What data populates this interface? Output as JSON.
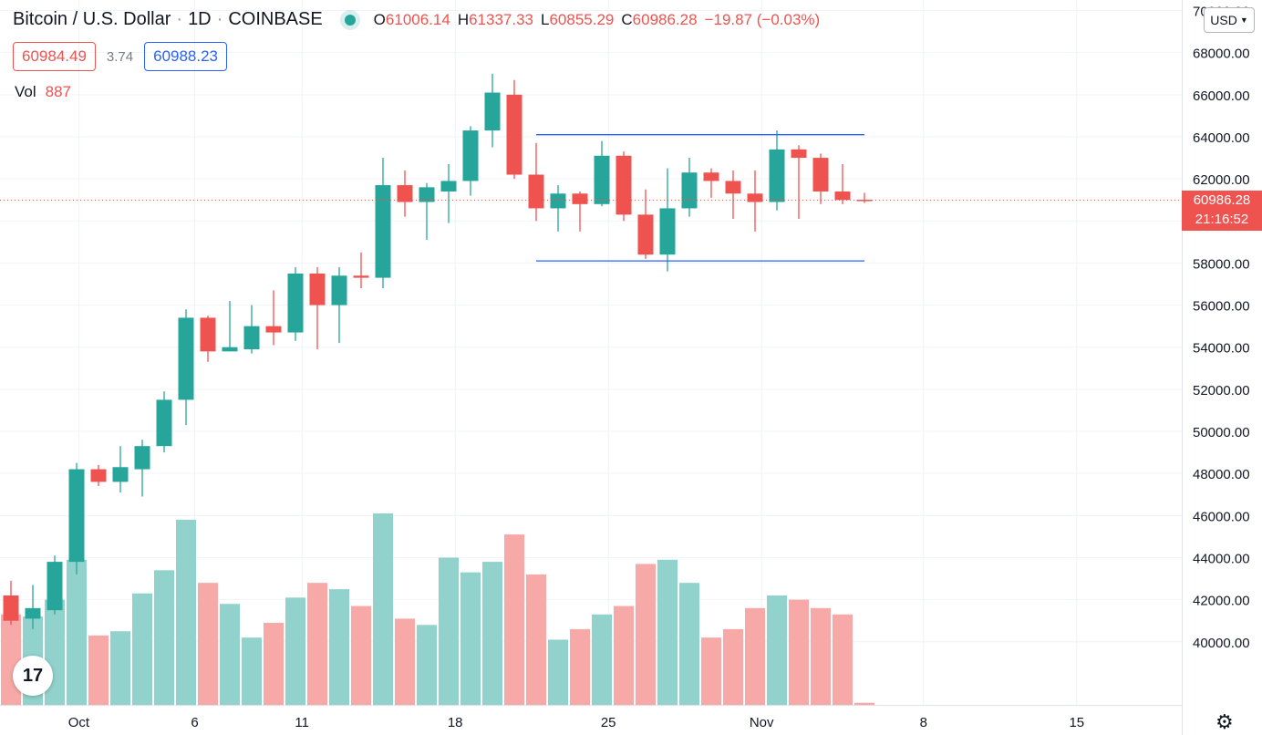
{
  "header": {
    "symbol": "Bitcoin / U.S. Dollar",
    "interval": "1D",
    "exchange": "COINBASE",
    "open_key": "O",
    "open_val": "61006.14",
    "high_key": "H",
    "high_val": "61337.33",
    "low_key": "L",
    "low_val": "60855.29",
    "close_key": "C",
    "close_val": "60986.28",
    "change": "−19.87 (−0.03%)"
  },
  "quote": {
    "bid": "60984.49",
    "spread": "3.74",
    "ask": "60988.23"
  },
  "volume": {
    "label": "Vol",
    "value": "887"
  },
  "currency": {
    "label": "USD"
  },
  "last_price": {
    "price": "60986.28",
    "countdown": "21:16:52"
  },
  "logo": {
    "text": "17"
  },
  "icons": {
    "settings": "gear-icon",
    "live": "live-dot",
    "dropdown": "chevron-down-icon"
  },
  "colors": {
    "up": "#26a69a",
    "down": "#ef5350",
    "up_vol": "#92d2cc",
    "down_vol": "#f7a9a7",
    "hline": "#2962ff"
  },
  "chart_data": {
    "type": "candlestick",
    "y_axis_ticks": [
      "40000.00",
      "42000.00",
      "44000.00",
      "46000.00",
      "48000.00",
      "50000.00",
      "52000.00",
      "54000.00",
      "56000.00",
      "58000.00",
      "60000.00",
      "62000.00",
      "64000.00",
      "66000.00",
      "68000.00",
      "70000.00"
    ],
    "ylim": [
      37000,
      70500
    ],
    "x_tick_labels": [
      {
        "label": "Oct",
        "index": 3.1
      },
      {
        "label": "6",
        "index": 8.4
      },
      {
        "label": "11",
        "index": 13.3
      },
      {
        "label": "18",
        "index": 20.3
      },
      {
        "label": "25",
        "index": 27.3
      },
      {
        "label": "Nov",
        "index": 34.3
      },
      {
        "label": "8",
        "index": 41.7
      },
      {
        "label": "15",
        "index": 48.7
      }
    ],
    "x_range": [
      -0.5,
      53.5
    ],
    "candles": [
      {
        "o": 42200,
        "h": 42900,
        "l": 40800,
        "c": 41000
      },
      {
        "o": 41100,
        "h": 42700,
        "l": 40600,
        "c": 41600
      },
      {
        "o": 41500,
        "h": 44100,
        "l": 41300,
        "c": 43800
      },
      {
        "o": 43800,
        "h": 48500,
        "l": 43200,
        "c": 48200
      },
      {
        "o": 48200,
        "h": 48400,
        "l": 47400,
        "c": 47600
      },
      {
        "o": 47600,
        "h": 49300,
        "l": 47100,
        "c": 48300
      },
      {
        "o": 48200,
        "h": 49600,
        "l": 46900,
        "c": 49300
      },
      {
        "o": 49300,
        "h": 51900,
        "l": 49000,
        "c": 51500
      },
      {
        "o": 51500,
        "h": 55800,
        "l": 50300,
        "c": 55400
      },
      {
        "o": 55400,
        "h": 55500,
        "l": 53300,
        "c": 53800
      },
      {
        "o": 53800,
        "h": 56200,
        "l": 53800,
        "c": 54000
      },
      {
        "o": 53900,
        "h": 56000,
        "l": 53700,
        "c": 55000
      },
      {
        "o": 55000,
        "h": 56700,
        "l": 54100,
        "c": 54700
      },
      {
        "o": 54700,
        "h": 57800,
        "l": 54300,
        "c": 57500
      },
      {
        "o": 57500,
        "h": 57800,
        "l": 53900,
        "c": 56000
      },
      {
        "o": 56000,
        "h": 57800,
        "l": 54200,
        "c": 57400
      },
      {
        "o": 57400,
        "h": 58500,
        "l": 56800,
        "c": 57300
      },
      {
        "o": 57300,
        "h": 63000,
        "l": 56800,
        "c": 61700
      },
      {
        "o": 61700,
        "h": 62400,
        "l": 60200,
        "c": 60900
      },
      {
        "o": 60900,
        "h": 61800,
        "l": 59100,
        "c": 61600
      },
      {
        "o": 61400,
        "h": 62700,
        "l": 59900,
        "c": 61900
      },
      {
        "o": 61900,
        "h": 64500,
        "l": 61200,
        "c": 64300
      },
      {
        "o": 64300,
        "h": 67000,
        "l": 63500,
        "c": 66100
      },
      {
        "o": 66000,
        "h": 66700,
        "l": 62000,
        "c": 62200
      },
      {
        "o": 62200,
        "h": 63700,
        "l": 60000,
        "c": 60600
      },
      {
        "o": 60600,
        "h": 61700,
        "l": 59500,
        "c": 61300
      },
      {
        "o": 61300,
        "h": 61400,
        "l": 59500,
        "c": 60800
      },
      {
        "o": 60800,
        "h": 63800,
        "l": 60700,
        "c": 63100
      },
      {
        "o": 63100,
        "h": 63300,
        "l": 60000,
        "c": 60300
      },
      {
        "o": 60300,
        "h": 61500,
        "l": 58200,
        "c": 58400
      },
      {
        "o": 58400,
        "h": 62500,
        "l": 57600,
        "c": 60600
      },
      {
        "o": 60600,
        "h": 63000,
        "l": 60200,
        "c": 62300
      },
      {
        "o": 62300,
        "h": 62500,
        "l": 61100,
        "c": 61900
      },
      {
        "o": 61900,
        "h": 62400,
        "l": 60100,
        "c": 61300
      },
      {
        "o": 61300,
        "h": 62400,
        "l": 59500,
        "c": 60900
      },
      {
        "o": 60900,
        "h": 64300,
        "l": 60500,
        "c": 63400
      },
      {
        "o": 63400,
        "h": 63600,
        "l": 60100,
        "c": 63000
      },
      {
        "o": 63000,
        "h": 63200,
        "l": 60800,
        "c": 61400
      },
      {
        "o": 61400,
        "h": 62700,
        "l": 60800,
        "c": 61000
      },
      {
        "o": 61006,
        "h": 61337,
        "l": 60855,
        "c": 60986
      }
    ],
    "volume_scale_max": 46100,
    "volumes": [
      41300,
      41200,
      42000,
      43900,
      40300,
      40500,
      42300,
      43400,
      45800,
      42800,
      41800,
      40200,
      40900,
      42100,
      42800,
      42500,
      41700,
      46100,
      41100,
      40800,
      44000,
      43300,
      43800,
      45100,
      43200,
      40100,
      40600,
      41300,
      41700,
      43700,
      43900,
      42800,
      40200,
      40600,
      41600,
      42200,
      42000,
      41600,
      41300,
      37100
    ],
    "horizontal_lines": [
      {
        "price": 64100,
        "from_index": 24,
        "to_index": 39
      },
      {
        "price": 58100,
        "from_index": 24,
        "to_index": 39
      }
    ],
    "last_price_line": 60986.28,
    "grid": true
  }
}
